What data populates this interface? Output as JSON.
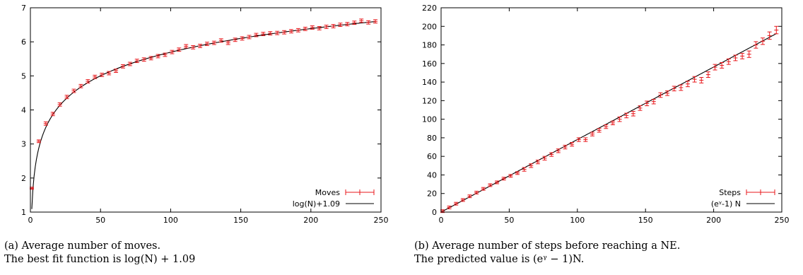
{
  "chart_data": [
    {
      "type": "line",
      "xlim": [
        0,
        250
      ],
      "ylim": [
        1,
        7
      ],
      "xticks": [
        0,
        50,
        100,
        150,
        200,
        250
      ],
      "yticks": [
        1,
        2,
        3,
        4,
        5,
        6,
        7
      ],
      "legend_position": "bottom-right",
      "series": [
        {
          "name": "Moves",
          "style": "errorbars",
          "color": "#e8171b",
          "x": [
            1,
            6,
            11,
            16,
            21,
            26,
            31,
            36,
            41,
            46,
            51,
            56,
            61,
            66,
            71,
            76,
            81,
            86,
            91,
            96,
            101,
            106,
            111,
            116,
            121,
            126,
            131,
            136,
            141,
            146,
            151,
            156,
            161,
            166,
            171,
            176,
            181,
            186,
            191,
            196,
            201,
            206,
            211,
            216,
            221,
            226,
            231,
            236,
            241,
            246
          ],
          "y": [
            1.7,
            3.08,
            3.6,
            3.88,
            4.16,
            4.38,
            4.56,
            4.7,
            4.84,
            4.97,
            5.03,
            5.08,
            5.15,
            5.28,
            5.35,
            5.44,
            5.48,
            5.52,
            5.58,
            5.62,
            5.7,
            5.77,
            5.87,
            5.84,
            5.88,
            5.94,
            5.97,
            6.04,
            5.97,
            6.06,
            6.1,
            6.14,
            6.2,
            6.23,
            6.25,
            6.26,
            6.28,
            6.31,
            6.34,
            6.38,
            6.42,
            6.4,
            6.44,
            6.46,
            6.5,
            6.52,
            6.56,
            6.62,
            6.57,
            6.6
          ],
          "err": [
            0.03,
            0.04,
            0.05,
            0.05,
            0.05,
            0.05,
            0.05,
            0.05,
            0.05,
            0.05,
            0.05,
            0.05,
            0.05,
            0.05,
            0.05,
            0.05,
            0.05,
            0.05,
            0.05,
            0.05,
            0.05,
            0.05,
            0.05,
            0.05,
            0.05,
            0.05,
            0.05,
            0.05,
            0.05,
            0.05,
            0.05,
            0.05,
            0.05,
            0.05,
            0.05,
            0.05,
            0.05,
            0.05,
            0.05,
            0.05,
            0.05,
            0.05,
            0.05,
            0.05,
            0.05,
            0.05,
            0.05,
            0.05,
            0.05,
            0.05
          ]
        },
        {
          "name": "log(N)+1.09",
          "style": "line",
          "color": "#000000",
          "function": "log(N)+1.09"
        }
      ]
    },
    {
      "type": "line",
      "xlim": [
        0,
        250
      ],
      "ylim": [
        0,
        220
      ],
      "xticks": [
        0,
        50,
        100,
        150,
        200,
        250
      ],
      "yticks": [
        0,
        20,
        40,
        60,
        80,
        100,
        120,
        140,
        160,
        180,
        200,
        220
      ],
      "legend_position": "bottom-right",
      "series": [
        {
          "name": "Steps",
          "style": "errorbars",
          "color": "#e8171b",
          "x": [
            1,
            6,
            11,
            16,
            21,
            26,
            31,
            36,
            41,
            46,
            51,
            56,
            61,
            66,
            71,
            76,
            81,
            86,
            91,
            96,
            101,
            106,
            111,
            116,
            121,
            126,
            131,
            136,
            141,
            146,
            151,
            156,
            161,
            166,
            171,
            176,
            181,
            186,
            191,
            196,
            201,
            206,
            211,
            216,
            221,
            226,
            231,
            236,
            241,
            246
          ],
          "y": [
            1,
            5,
            9,
            13,
            17,
            21,
            25,
            29,
            32,
            36,
            39,
            42,
            46,
            50,
            54,
            58,
            62,
            66,
            70,
            73,
            78,
            78,
            84,
            88,
            92,
            96,
            100,
            104,
            106,
            112,
            117,
            119,
            126,
            128,
            133,
            134,
            138,
            143,
            142,
            148,
            156,
            158,
            162,
            166,
            168,
            170,
            180,
            184,
            190,
            196
          ],
          "err": [
            1.5,
            1.5,
            1.5,
            1.5,
            1.5,
            1.5,
            1.5,
            1.5,
            1.5,
            1.5,
            1.5,
            1.5,
            2,
            2,
            2,
            2,
            2,
            2,
            2,
            2,
            2,
            2,
            2,
            2,
            2,
            2,
            2.5,
            2.5,
            2.5,
            2.5,
            2.5,
            2.5,
            2.5,
            2.5,
            2.5,
            3,
            3,
            3,
            3,
            3,
            3,
            3,
            3,
            3,
            3,
            3.5,
            3.5,
            3.5,
            4,
            4
          ]
        },
        {
          "name": "(eᵞ-1) N",
          "style": "line",
          "color": "#000000",
          "function": "(e^gamma - 1) N"
        }
      ]
    }
  ],
  "captions": {
    "a_line1": "(a) Average number of moves.",
    "a_line2": "The best fit function is log(N) + 1.09",
    "b_line1": "(b) Average number of steps before reaching a NE.",
    "b_line2": "The predicted value is (eᵞ − 1)N."
  }
}
